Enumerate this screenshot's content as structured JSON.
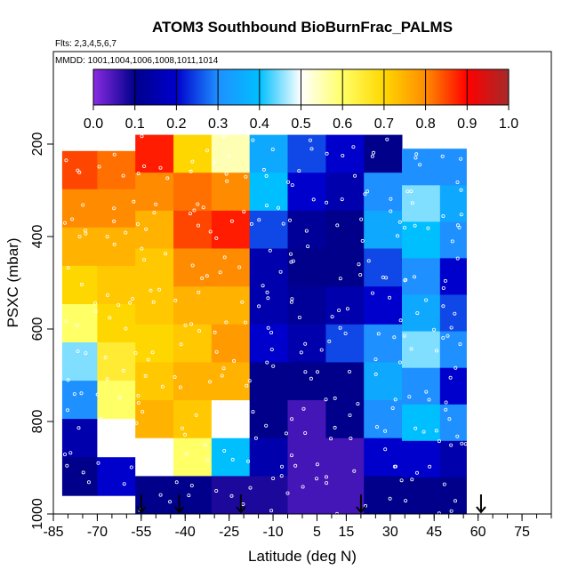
{
  "chart_data": {
    "type": "heatmap",
    "title": "ATOM3 Southbound BioBurnFrac_PALMS",
    "subtitle_flights": "Flts: 2,3,4,5,6,7",
    "subtitle_dates": "MMDD: 1001,1004,1006,1008,1011,1014",
    "xlabel": "Latitude (deg N)",
    "ylabel": "PSXC (mbar)",
    "xlim": [
      -85,
      85
    ],
    "ylim": [
      1000,
      0
    ],
    "y_reversed": true,
    "x_ticks": [
      -85,
      -70,
      -55,
      -40,
      -25,
      -10,
      5,
      15,
      30,
      45,
      60,
      75
    ],
    "y_ticks": [
      200,
      400,
      600,
      800,
      1000
    ],
    "colorbar": {
      "range": [
        0,
        1
      ],
      "ticks": [
        "0.0",
        "0.1",
        "0.2",
        "0.3",
        "0.4",
        "0.5",
        "0.6",
        "0.7",
        "0.8",
        "0.9",
        "1.0"
      ],
      "colors": [
        "#8a2be2",
        "#00008b",
        "#0000cd",
        "#1e90ff",
        "#00bfff",
        "#ffffff",
        "#ffff66",
        "#ffd700",
        "#ff8c00",
        "#ff0000",
        "#a52a2a"
      ]
    },
    "arrows_lat": [
      -55,
      -42,
      -21,
      20,
      61
    ],
    "colors": {
      "frame": "#000000",
      "point_marker": "#ffffff"
    },
    "profiles": [
      {
        "lat": [
          -82,
          -70
        ],
        "p": [
          215,
          960
        ],
        "values": [
          0.85,
          0.8,
          0.75,
          0.7,
          0.6,
          0.45,
          0.3,
          0.15,
          0.1
        ]
      },
      {
        "lat": [
          -70,
          -57
        ],
        "p": [
          215,
          960
        ],
        "values": [
          0.82,
          0.8,
          0.75,
          0.72,
          0.7,
          0.65,
          0.6,
          0.5,
          0.2
        ]
      },
      {
        "lat": [
          -57,
          -44
        ],
        "p": [
          180,
          1000
        ],
        "values": [
          0.88,
          0.8,
          0.75,
          0.72,
          0.72,
          0.7,
          0.72,
          0.75,
          0.5,
          0.1
        ]
      },
      {
        "lat": [
          -44,
          -31
        ],
        "p": [
          180,
          1000
        ],
        "values": [
          0.7,
          0.82,
          0.85,
          0.8,
          0.75,
          0.72,
          0.75,
          0.72,
          0.6,
          0.1
        ]
      },
      {
        "lat": [
          -31,
          -18
        ],
        "p": [
          180,
          1000
        ],
        "values": [
          0.55,
          0.8,
          0.88,
          0.8,
          0.75,
          0.78,
          0.75,
          0.5,
          0.4,
          0.08
        ]
      },
      {
        "lat": [
          -18,
          -5
        ],
        "p": [
          180,
          1000
        ],
        "values": [
          0.35,
          0.4,
          0.25,
          0.15,
          0.15,
          0.2,
          0.1,
          0.1,
          0.15,
          0.08
        ]
      },
      {
        "lat": [
          -5,
          8
        ],
        "p": [
          180,
          1000
        ],
        "values": [
          0.25,
          0.2,
          0.12,
          0.1,
          0.12,
          0.15,
          0.1,
          0.05,
          0.05,
          0.05
        ]
      },
      {
        "lat": [
          8,
          21
        ],
        "p": [
          180,
          1000
        ],
        "values": [
          0.2,
          0.15,
          0.1,
          0.1,
          0.15,
          0.25,
          0.1,
          0.1,
          0.05,
          0.05
        ]
      },
      {
        "lat": [
          21,
          34
        ],
        "p": [
          180,
          1000
        ],
        "values": [
          0.1,
          0.3,
          0.35,
          0.25,
          0.2,
          0.3,
          0.35,
          0.3,
          0.2,
          0.1
        ]
      },
      {
        "lat": [
          34,
          47
        ],
        "p": [
          210,
          1000
        ],
        "values": [
          0.3,
          0.45,
          0.4,
          0.3,
          0.35,
          0.45,
          0.3,
          0.4,
          0.2,
          0.1
        ]
      },
      {
        "lat": [
          47,
          56
        ],
        "p": [
          210,
          1000
        ],
        "values": [
          0.3,
          0.35,
          0.3,
          0.2,
          0.25,
          0.3,
          0.2,
          0.3,
          0.15,
          0.1
        ]
      }
    ]
  }
}
